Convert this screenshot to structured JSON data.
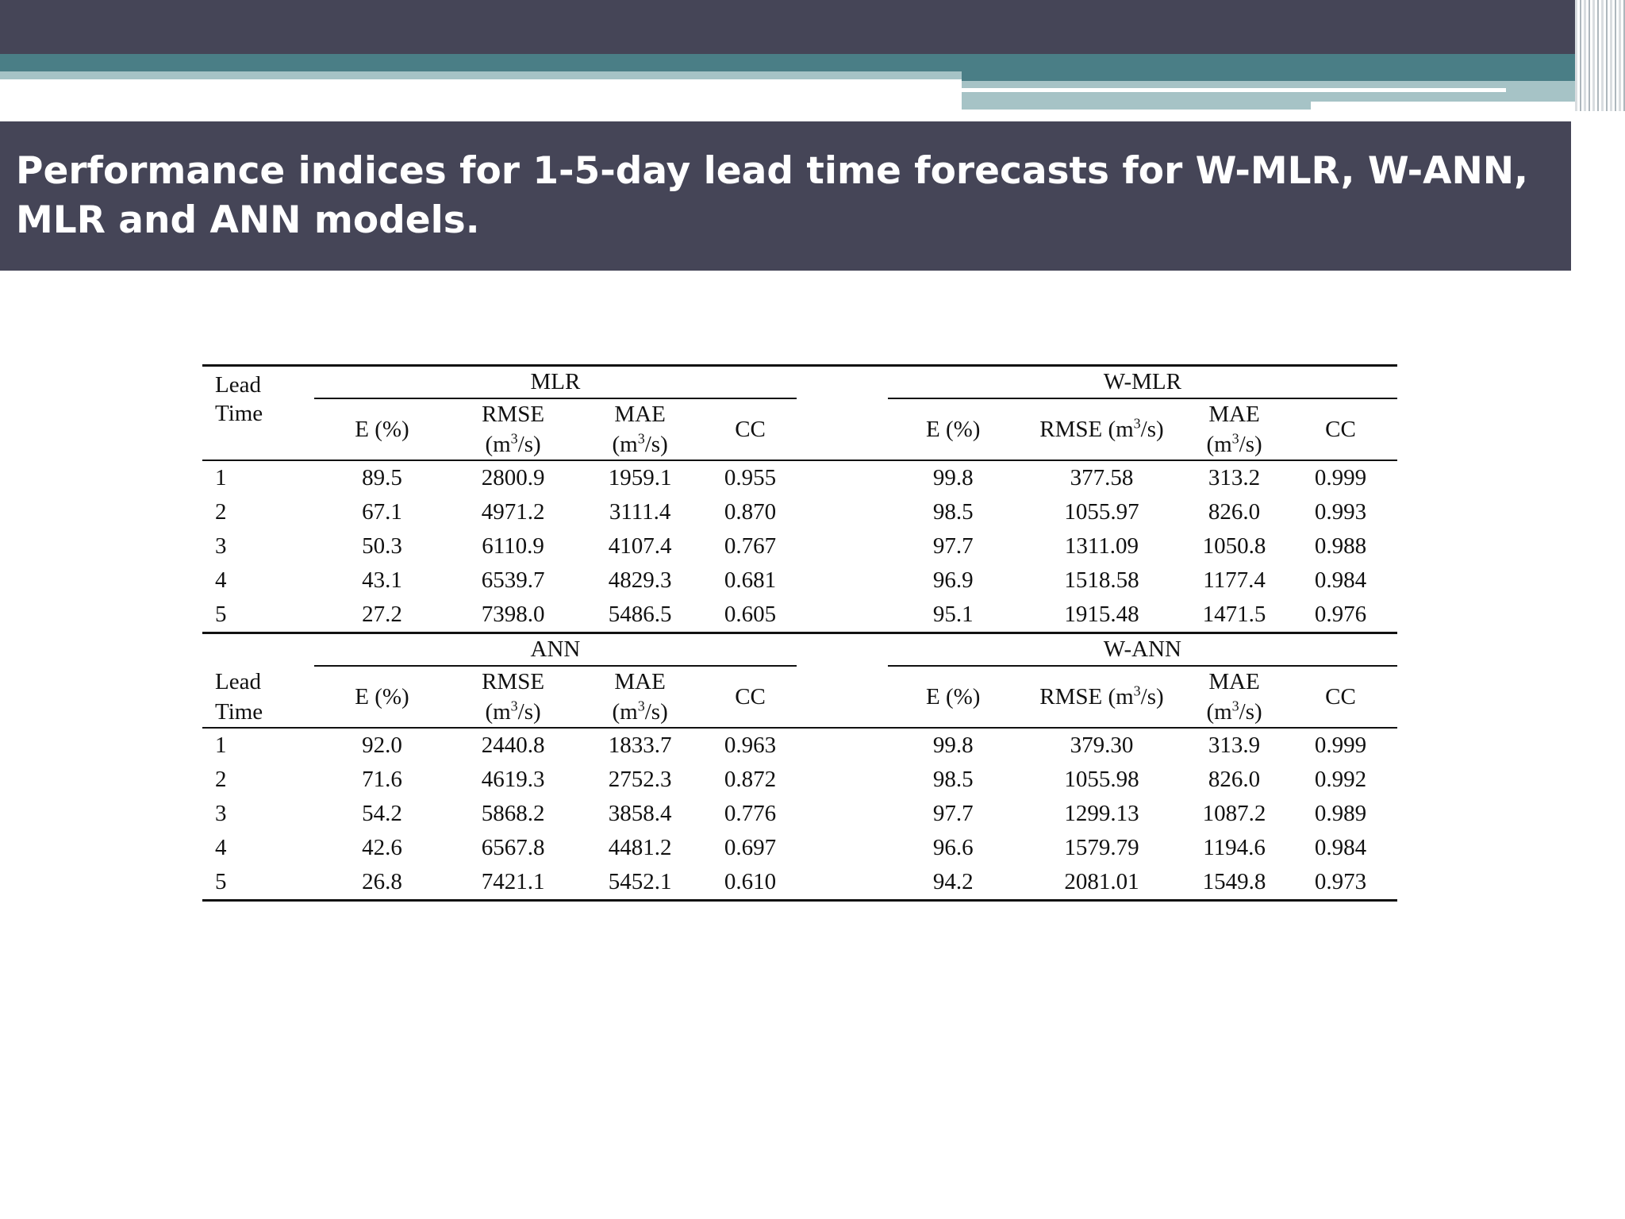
{
  "slide": {
    "title": "Performance indices for 1-5-day lead time forecasts for W-MLR, W-ANN, MLR and ANN models."
  },
  "table": {
    "lead_label_1": "Lead",
    "lead_label_2": "Time",
    "top": {
      "left_group": "MLR",
      "right_group": "W-MLR",
      "left_cols": {
        "e": "E (%)",
        "rmse_1": "RMSE",
        "rmse_2": "(m",
        "rmse_3": "/s)",
        "mae_1": "MAE",
        "mae_2": "(m",
        "mae_3": "/s)",
        "cc": "CC"
      },
      "right_cols": {
        "e": "E (%)",
        "rmse_1": "RMSE (m",
        "rmse_2": "/s)",
        "mae_1": "MAE",
        "mae_2": "(m",
        "mae_3": "/s)",
        "cc": "CC"
      },
      "rows": [
        [
          "1",
          "89.5",
          "2800.9",
          "1959.1",
          "0.955",
          "99.8",
          "377.58",
          "313.2",
          "0.999"
        ],
        [
          "2",
          "67.1",
          "4971.2",
          "3111.4",
          "0.870",
          "98.5",
          "1055.97",
          "826.0",
          "0.993"
        ],
        [
          "3",
          "50.3",
          "6110.9",
          "4107.4",
          "0.767",
          "97.7",
          "1311.09",
          "1050.8",
          "0.988"
        ],
        [
          "4",
          "43.1",
          "6539.7",
          "4829.3",
          "0.681",
          "96.9",
          "1518.58",
          "1177.4",
          "0.984"
        ],
        [
          "5",
          "27.2",
          "7398.0",
          "5486.5",
          "0.605",
          "95.1",
          "1915.48",
          "1471.5",
          "0.976"
        ]
      ]
    },
    "bottom": {
      "left_group": "ANN",
      "right_group": "W-ANN",
      "left_cols": {
        "e": "E (%)",
        "rmse_1": "RMSE",
        "rmse_2": "(m",
        "rmse_3": "/s)",
        "mae_1": "MAE",
        "mae_2": "(m",
        "mae_3": "/s)",
        "cc": "CC"
      },
      "right_cols": {
        "e": "E (%)",
        "rmse_1": "RMSE (m",
        "rmse_2": "/s)",
        "mae_1": "MAE",
        "mae_2": "(m",
        "mae_3": "/s)",
        "cc": "CC"
      },
      "rows": [
        [
          "1",
          "92.0",
          "2440.8",
          "1833.7",
          "0.963",
          "99.8",
          "379.30",
          "313.9",
          "0.999"
        ],
        [
          "2",
          "71.6",
          "4619.3",
          "2752.3",
          "0.872",
          "98.5",
          "1055.98",
          "826.0",
          "0.992"
        ],
        [
          "3",
          "54.2",
          "5868.2",
          "3858.4",
          "0.776",
          "97.7",
          "1299.13",
          "1087.2",
          "0.989"
        ],
        [
          "4",
          "42.6",
          "6567.8",
          "4481.2",
          "0.697",
          "96.6",
          "1579.79",
          "1194.6",
          "0.984"
        ],
        [
          "5",
          "26.8",
          "7421.1",
          "5452.1",
          "0.610",
          "94.2",
          "2081.01",
          "1549.8",
          "0.973"
        ]
      ]
    },
    "superscript": "3"
  }
}
